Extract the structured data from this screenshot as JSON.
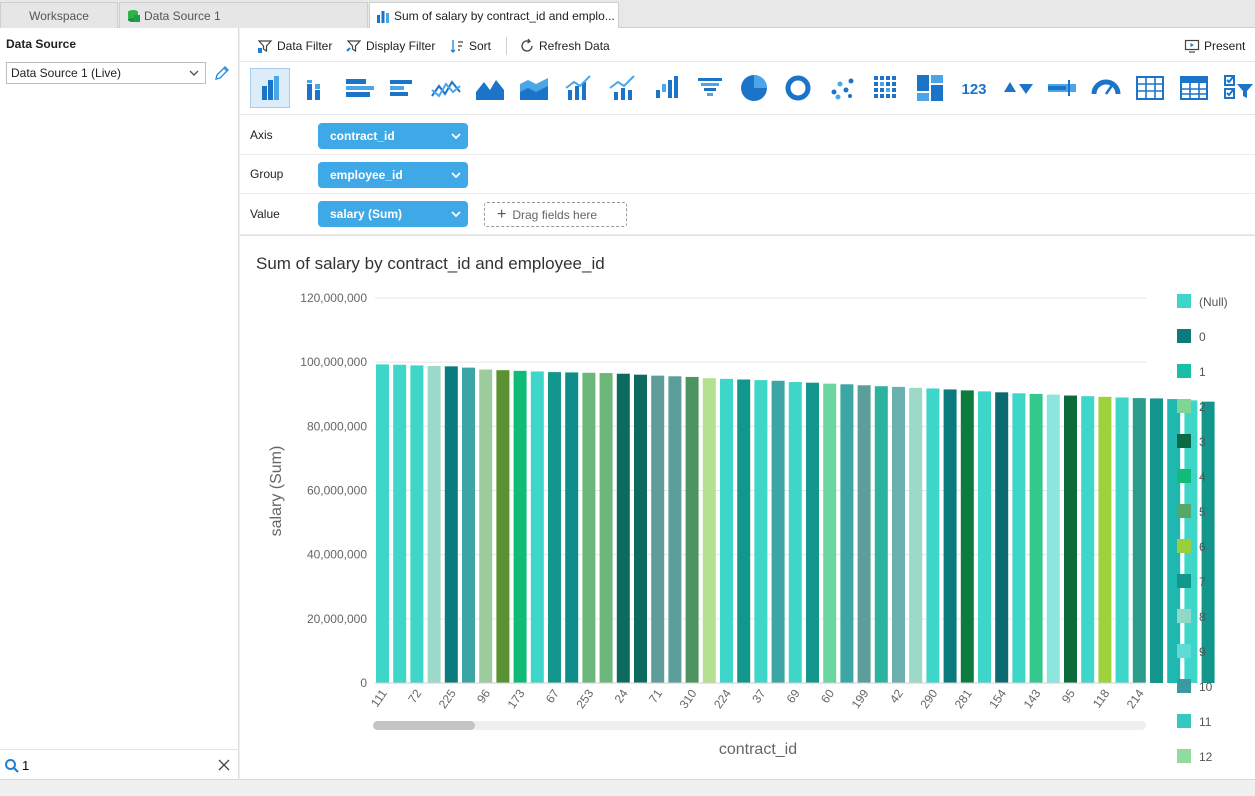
{
  "tabs": [
    {
      "label": "Workspace"
    },
    {
      "label": "Data Source 1"
    },
    {
      "label": "Sum of salary by contract_id and emplo..."
    }
  ],
  "left": {
    "title": "Data Source",
    "source_value": "Data Source 1 (Live)",
    "search_value": "1"
  },
  "toolbar": {
    "data_filter": "Data Filter",
    "display_filter": "Display Filter",
    "sort": "Sort",
    "refresh": "Refresh Data",
    "present": "Present"
  },
  "chart_types": [
    "column",
    "clustered-column",
    "bar",
    "stacked-bar",
    "line",
    "area",
    "stacked-area",
    "column-line",
    "multi-line",
    "waterfall",
    "funnel",
    "pie",
    "donut",
    "scatter",
    "heatmap",
    "treemap",
    "kpi",
    "up-down",
    "bullet",
    "gauge",
    "table",
    "pivot",
    "filter"
  ],
  "shelves": {
    "axis_label": "Axis",
    "axis_field": "contract_id",
    "group_label": "Group",
    "group_field": "employee_id",
    "value_label": "Value",
    "value_field": "salary (Sum)",
    "drop_hint": "Drag fields here"
  },
  "chart_data": {
    "type": "bar",
    "title": "Sum of salary by contract_id and employee_id",
    "xlabel": "contract_id",
    "ylabel": "salary (Sum)",
    "ylim": [
      0,
      120000000
    ],
    "yticks": [
      "0",
      "20,000,000",
      "40,000,000",
      "60,000,000",
      "80,000,000",
      "100,000,000",
      "120,000,000"
    ],
    "xtick_labels": [
      "111",
      "72",
      "225",
      "96",
      "173",
      "67",
      "253",
      "24",
      "71",
      "310",
      "224",
      "37",
      "69",
      "60",
      "199",
      "42",
      "290",
      "281",
      "154",
      "143",
      "95",
      "118",
      "214"
    ],
    "values": [
      99300000,
      99200000,
      99000000,
      98800000,
      98700000,
      98300000,
      97700000,
      97500000,
      97300000,
      97100000,
      96900000,
      96800000,
      96700000,
      96600000,
      96400000,
      96100000,
      95800000,
      95600000,
      95400000,
      95000000,
      94800000,
      94600000,
      94400000,
      94200000,
      93800000,
      93600000,
      93300000,
      93100000,
      92800000,
      92500000,
      92300000,
      92000000,
      91800000,
      91500000,
      91200000,
      90900000,
      90600000,
      90300000,
      90100000,
      89900000,
      89600000,
      89400000,
      89200000,
      89000000,
      88800000,
      88700000,
      88500000,
      88100000,
      87700000
    ],
    "bar_colors": [
      "#3dd6c8",
      "#3dd6c8",
      "#3dd6c8",
      "#9dd9c9",
      "#0b7b7e",
      "#3ba6a4",
      "#9ecb9e",
      "#5a9233",
      "#10bb77",
      "#3dd6c8",
      "#13968c",
      "#0e8d8a",
      "#6cb87a",
      "#6cb87a",
      "#0d6a5f",
      "#0d6a5f",
      "#5e9d9a",
      "#5b9e9a",
      "#4d9462",
      "#b5e090",
      "#3dd6c8",
      "#13968c",
      "#3dd6c8",
      "#3ba6a4",
      "#3dd6c8",
      "#13968c",
      "#6cd6a0",
      "#3ba6a4",
      "#5b9e9a",
      "#2bb3a0",
      "#6cafaf",
      "#9dd9c9",
      "#3dd6c8",
      "#0b7b7e",
      "#0b7b3e",
      "#3dd6c8",
      "#0b6a70",
      "#3dd6c8",
      "#34c88c",
      "#8de5df",
      "#0c6b3a",
      "#3dd6c8",
      "#9ed13c",
      "#3dd6c8",
      "#2a9e8a",
      "#13968c",
      "#1fb8b0",
      "#3dd6c8",
      "#13968c"
    ],
    "legend": [
      {
        "name": "(Null)",
        "color": "#3dd6c8"
      },
      {
        "name": "0",
        "color": "#0b7b7e"
      },
      {
        "name": "1",
        "color": "#19bfa5"
      },
      {
        "name": "2",
        "color": "#7ed694"
      },
      {
        "name": "3",
        "color": "#0a6b45"
      },
      {
        "name": "4",
        "color": "#12bb77"
      },
      {
        "name": "5",
        "color": "#56a86a"
      },
      {
        "name": "6",
        "color": "#97cf3f"
      },
      {
        "name": "7",
        "color": "#13968c"
      },
      {
        "name": "8",
        "color": "#8ed9c8"
      },
      {
        "name": "9",
        "color": "#5fdad6"
      },
      {
        "name": "10",
        "color": "#3b9aa0"
      },
      {
        "name": "11",
        "color": "#34c9c0"
      },
      {
        "name": "12",
        "color": "#8fdc9e"
      }
    ],
    "grid": true,
    "legend_position": "right"
  }
}
